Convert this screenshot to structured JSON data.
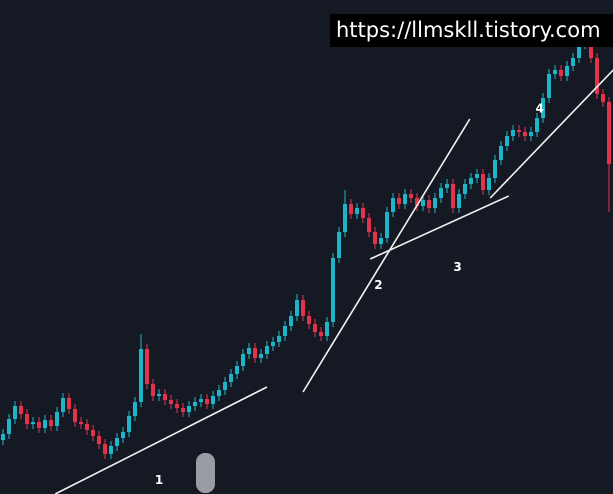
{
  "chart_data": {
    "type": "candlestick",
    "watermark": "https://llmskll.tistory.com",
    "up_color": "#1fb5c9",
    "down_color": "#e2334c",
    "line_color": "#f2f2f2",
    "ylim": [
      0,
      494
    ],
    "open": [
      54,
      60,
      75,
      88,
      80,
      70,
      72,
      66,
      74,
      68,
      82,
      96,
      85,
      72,
      70,
      64,
      58,
      50,
      40,
      48,
      56,
      62,
      78,
      92,
      145,
      110,
      98,
      100,
      94,
      90,
      86,
      82,
      88,
      92,
      95,
      90,
      98,
      104,
      112,
      120,
      128,
      140,
      146,
      136,
      140,
      148,
      152,
      158,
      168,
      178,
      194,
      178,
      170,
      162,
      158,
      172,
      236,
      262,
      290,
      280,
      286,
      276,
      262,
      250,
      256,
      282,
      296,
      290,
      300,
      296,
      288,
      294,
      286,
      296,
      306,
      310,
      286,
      300,
      310,
      316,
      320,
      304,
      316,
      334,
      348,
      358,
      364,
      362,
      358,
      362,
      376,
      396,
      420,
      424,
      418,
      428,
      436,
      450,
      470,
      436,
      400,
      392
    ],
    "high": [
      65,
      80,
      93,
      93,
      85,
      77,
      77,
      79,
      79,
      87,
      101,
      101,
      90,
      77,
      75,
      69,
      63,
      55,
      53,
      61,
      67,
      83,
      97,
      160,
      150,
      115,
      105,
      105,
      99,
      95,
      91,
      93,
      97,
      100,
      100,
      103,
      109,
      117,
      125,
      133,
      145,
      151,
      151,
      145,
      153,
      157,
      163,
      173,
      183,
      200,
      199,
      183,
      175,
      167,
      177,
      241,
      267,
      304,
      295,
      291,
      291,
      281,
      267,
      261,
      287,
      301,
      301,
      305,
      305,
      301,
      299,
      299,
      301,
      311,
      315,
      315,
      305,
      315,
      321,
      325,
      325,
      321,
      339,
      353,
      363,
      369,
      369,
      367,
      367,
      381,
      401,
      425,
      429,
      429,
      433,
      441,
      455,
      475,
      475,
      441,
      405,
      397
    ],
    "low": [
      49,
      55,
      70,
      75,
      65,
      65,
      61,
      61,
      63,
      63,
      77,
      80,
      67,
      65,
      59,
      53,
      45,
      35,
      35,
      43,
      51,
      57,
      73,
      87,
      105,
      93,
      93,
      89,
      85,
      81,
      77,
      77,
      83,
      87,
      85,
      85,
      93,
      99,
      107,
      115,
      123,
      135,
      131,
      131,
      135,
      143,
      147,
      153,
      163,
      173,
      173,
      165,
      157,
      153,
      153,
      167,
      231,
      257,
      275,
      275,
      271,
      257,
      245,
      245,
      251,
      277,
      285,
      285,
      291,
      283,
      283,
      281,
      281,
      291,
      301,
      281,
      281,
      295,
      305,
      311,
      299,
      299,
      311,
      329,
      343,
      353,
      357,
      353,
      353,
      357,
      371,
      391,
      415,
      413,
      413,
      423,
      431,
      445,
      431,
      395,
      387,
      282
    ],
    "close": [
      60,
      75,
      88,
      80,
      70,
      72,
      66,
      74,
      68,
      82,
      96,
      85,
      72,
      70,
      64,
      58,
      50,
      40,
      48,
      56,
      62,
      78,
      92,
      145,
      110,
      98,
      100,
      94,
      90,
      86,
      82,
      88,
      92,
      95,
      90,
      98,
      104,
      112,
      120,
      128,
      140,
      146,
      136,
      140,
      148,
      152,
      158,
      168,
      178,
      194,
      178,
      170,
      162,
      158,
      172,
      236,
      262,
      290,
      280,
      286,
      276,
      262,
      250,
      256,
      282,
      296,
      290,
      300,
      296,
      288,
      294,
      286,
      296,
      306,
      310,
      286,
      300,
      310,
      316,
      320,
      304,
      316,
      334,
      348,
      358,
      364,
      362,
      358,
      362,
      376,
      396,
      420,
      424,
      418,
      428,
      436,
      450,
      470,
      436,
      400,
      392,
      330
    ],
    "trendlines": [
      {
        "label": "1",
        "start": [
          8.7,
          0
        ],
        "end": [
          44,
          107
        ]
      },
      {
        "label": "2",
        "start": [
          50,
          102
        ],
        "end": [
          77.8,
          375
        ]
      },
      {
        "label": "3",
        "start": [
          61.2,
          235
        ],
        "end": [
          84.3,
          298
        ]
      },
      {
        "label": "4",
        "start": [
          81.2,
          296
        ],
        "end": [
          101.7,
          424
        ]
      }
    ]
  }
}
